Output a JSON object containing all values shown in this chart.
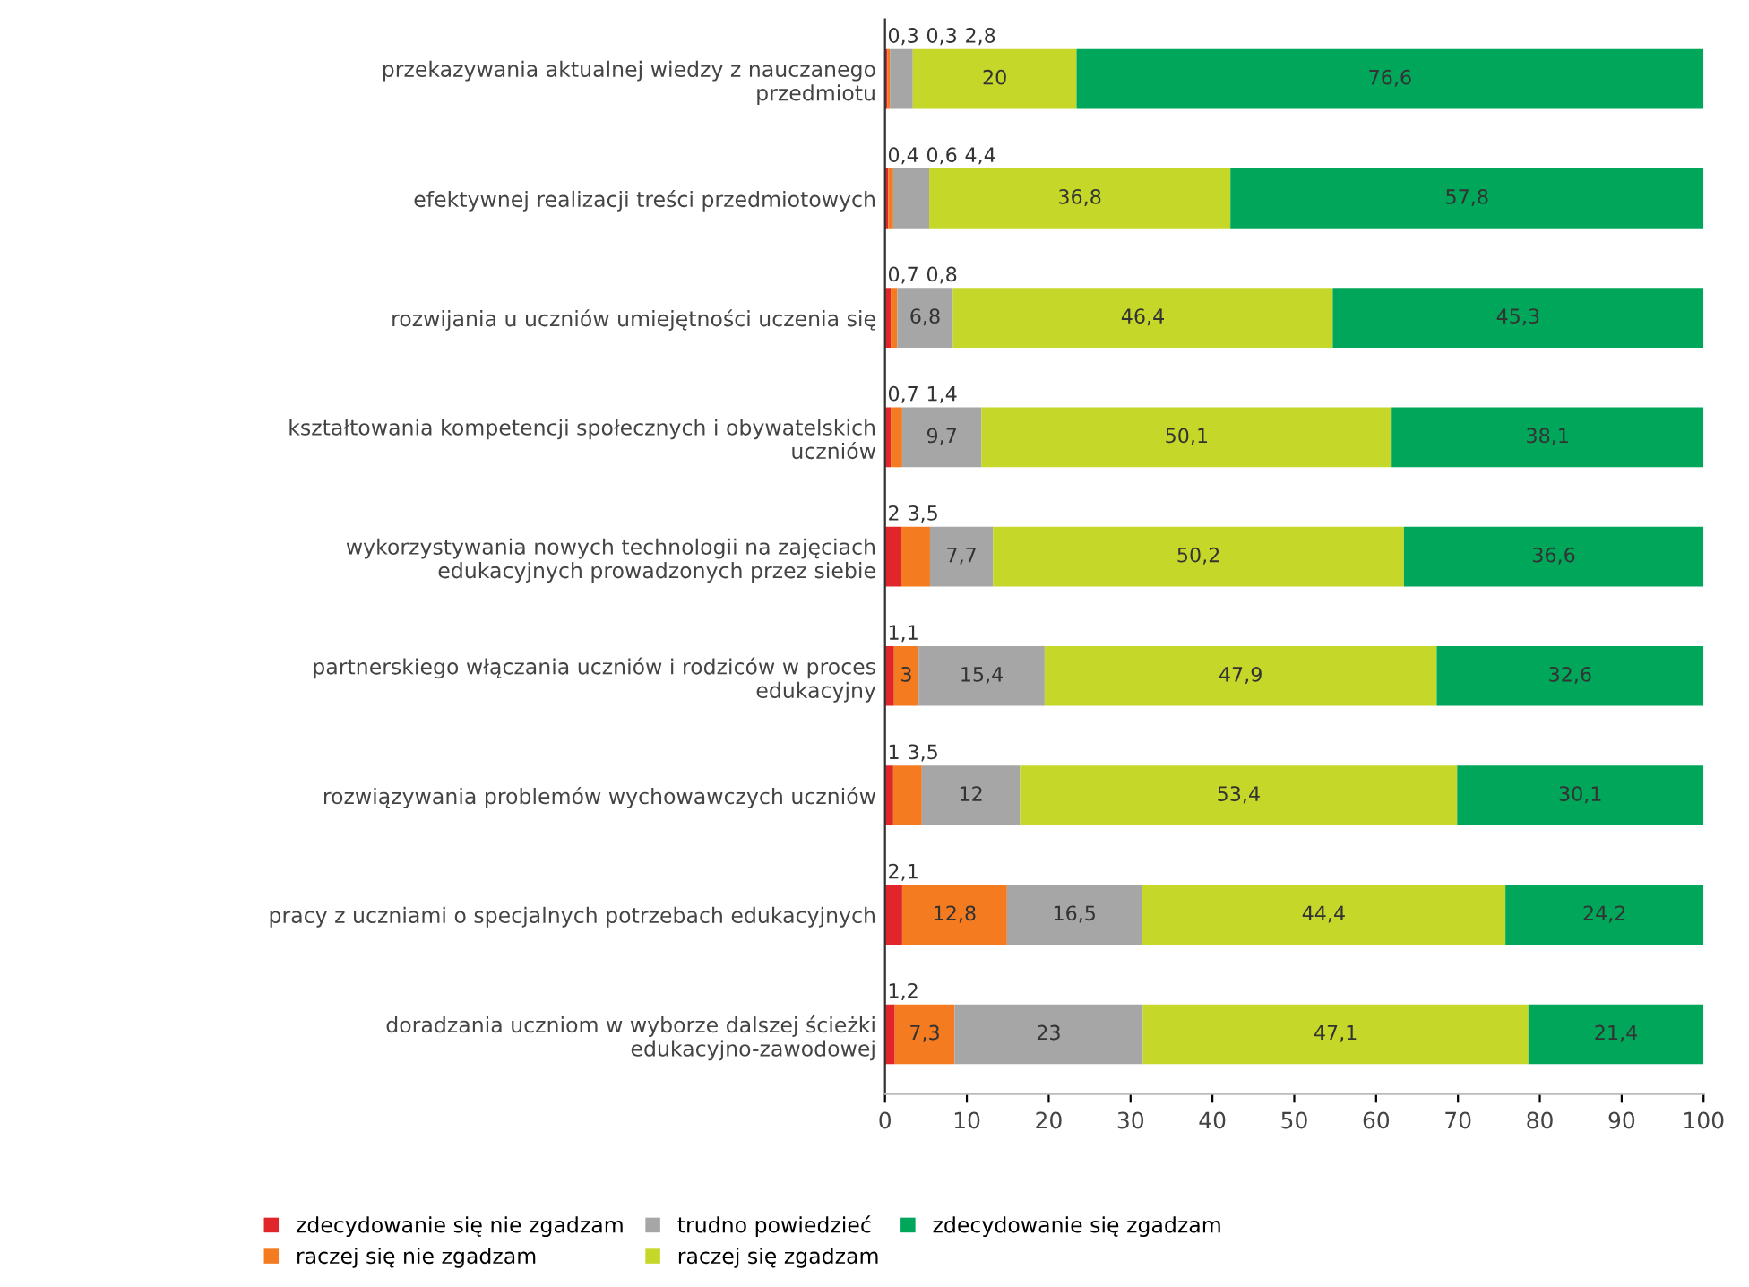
{
  "chart_data": {
    "type": "bar",
    "orientation": "horizontal",
    "stacked": true,
    "legend": "bottom",
    "grid": false,
    "categories": [
      "przekazywania aktualnej wiedzy z nauczanego\nprzedmiotu",
      "efektywnej realizacji treści przedmiotowych",
      "rozwijania u uczniów umiejętności uczenia się",
      "kształtowania kompetencji społecznych i obywatelskich\nuczniów",
      "wykorzystywania nowych technologii na zajęciach\nedukacyjnych prowadzonych przez siebie",
      "partnerskiego włączania uczniów i rodziców w proces\nedukacyjny",
      "rozwiązywania problemów wychowawczych uczniów",
      "pracy z uczniami o specjalnych potrzebach edukacyjnych",
      "doradzania uczniom w wyborze dalszej ścieżki\nedukacyjno-zawodowej"
    ],
    "series": [
      {
        "name": "zdecydowanie się nie zgadzam",
        "color": "#e0262b",
        "values": [
          0.3,
          0.4,
          0.7,
          0.7,
          2,
          1.1,
          1,
          2.1,
          1.2
        ],
        "value_labels": [
          "0,3",
          "0,4",
          "0,7",
          "0,7",
          "2",
          "1,1",
          "1",
          "2,1",
          "1,2"
        ]
      },
      {
        "name": "raczej się nie zgadzam",
        "color": "#f47b20",
        "values": [
          0.3,
          0.6,
          0.8,
          1.4,
          3.5,
          3,
          3.5,
          12.8,
          7.3
        ],
        "value_labels": [
          "0,3",
          "0,6",
          "0,8",
          "1,4",
          "3,5",
          "3",
          "3,5",
          "12,8",
          "7,3"
        ]
      },
      {
        "name": "trudno powiedzieć",
        "color": "#a6a6a6",
        "values": [
          2.8,
          4.4,
          6.8,
          9.7,
          7.7,
          15.4,
          12,
          16.5,
          23
        ],
        "value_labels": [
          "2,8",
          "4,4",
          "6,8",
          "9,7",
          "7,7",
          "15,4",
          "12",
          "16,5",
          "23"
        ]
      },
      {
        "name": "raczej się zgadzam",
        "color": "#c5d82a",
        "values": [
          20,
          36.8,
          46.4,
          50.1,
          50.2,
          47.9,
          53.4,
          44.4,
          47.1
        ],
        "value_labels": [
          "20",
          "36,8",
          "46,4",
          "50,1",
          "50,2",
          "47,9",
          "53,4",
          "44,4",
          "47,1"
        ]
      },
      {
        "name": "zdecydowanie się zgadzam",
        "color": "#00a65a",
        "values": [
          76.6,
          57.8,
          45.3,
          38.1,
          36.6,
          32.6,
          30.1,
          24.2,
          21.4
        ],
        "value_labels": [
          "76,6",
          "57,8",
          "45,3",
          "38,1",
          "36,6",
          "32,6",
          "30,1",
          "24,2",
          "21,4"
        ]
      }
    ],
    "xlim": [
      0,
      100
    ],
    "xticks": [
      0,
      10,
      20,
      30,
      40,
      50,
      60,
      70,
      80,
      90,
      100
    ]
  }
}
